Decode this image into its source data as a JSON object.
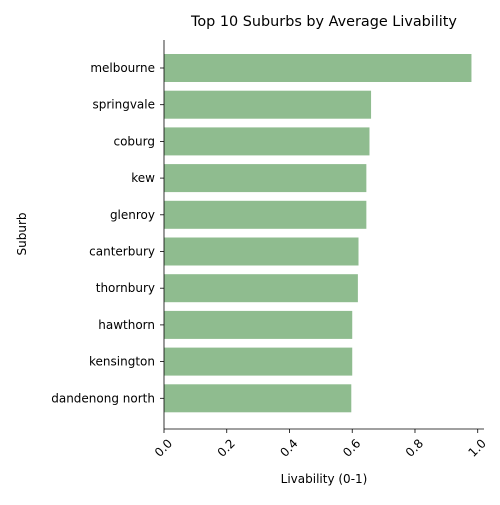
{
  "chart_data": {
    "type": "bar",
    "orientation": "horizontal",
    "title": "Top 10 Suburbs by Average Livability",
    "xlabel": "Livability (0-1)",
    "ylabel": "Suburb",
    "categories": [
      "melbourne",
      "springvale",
      "coburg",
      "kew",
      "glenroy",
      "canterbury",
      "thornbury",
      "hawthorn",
      "kensington",
      "dandenong north"
    ],
    "values": [
      0.98,
      0.66,
      0.655,
      0.645,
      0.645,
      0.62,
      0.618,
      0.6,
      0.6,
      0.597
    ],
    "xlim": [
      0.0,
      1.02
    ],
    "xticks": [
      "0.0",
      "0.2",
      "0.4",
      "0.6",
      "0.8",
      "1.0"
    ],
    "xtick_values": [
      0.0,
      0.2,
      0.4,
      0.6,
      0.8,
      1.0
    ],
    "bar_color": "#8fbc8f",
    "grid": false,
    "legend": "none"
  }
}
